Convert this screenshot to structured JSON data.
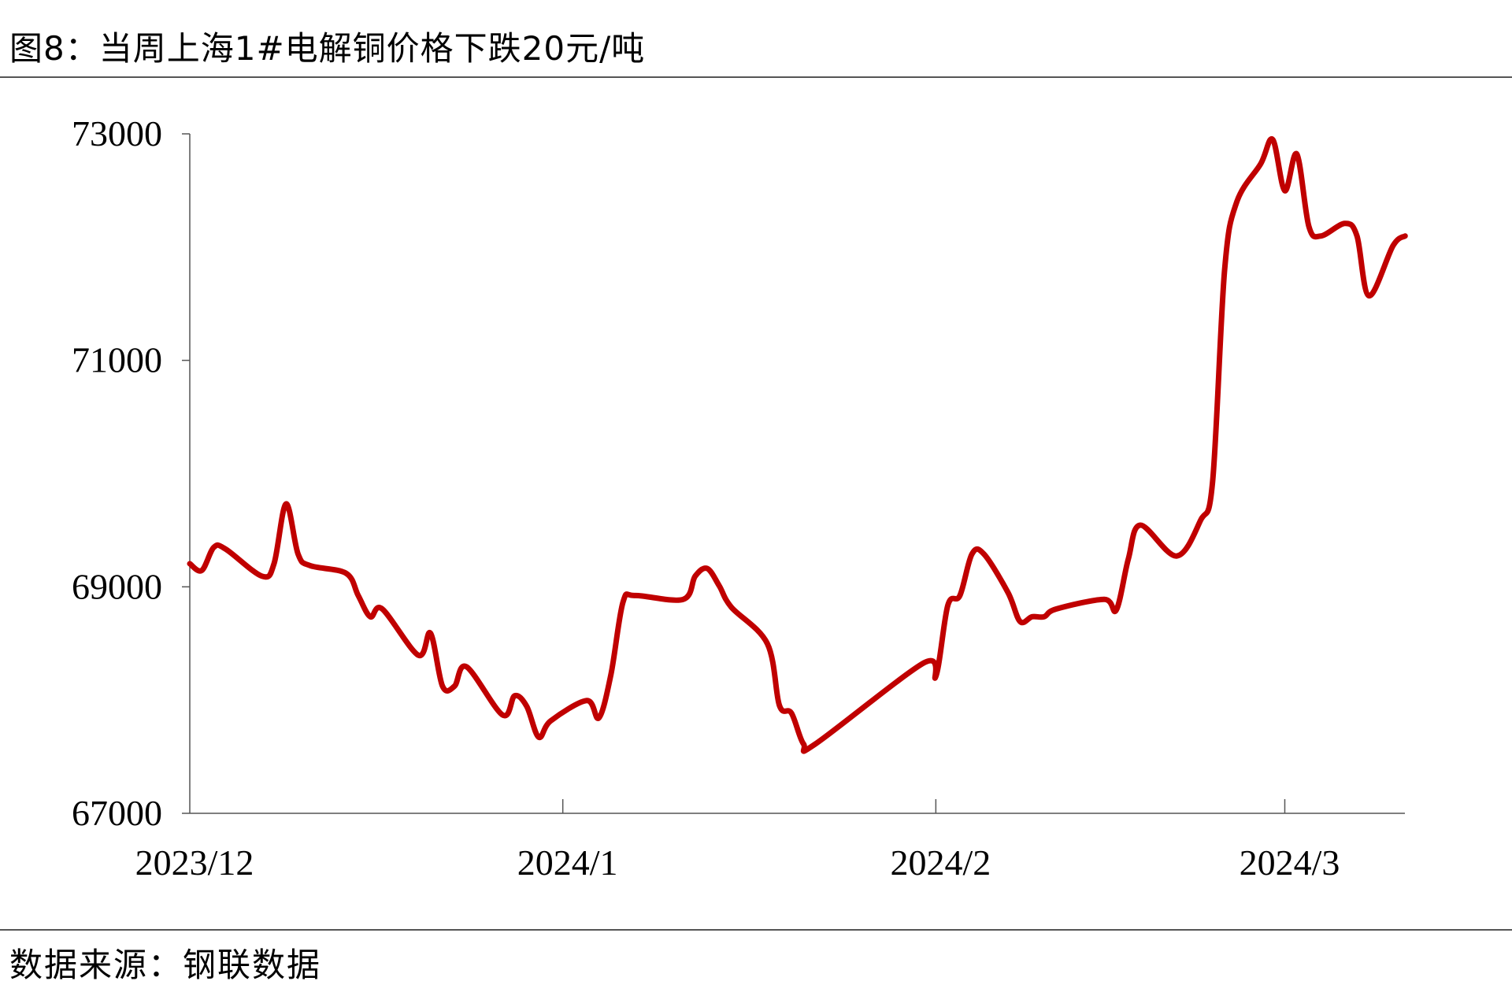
{
  "title": "图8：当周上海1#电解铜价格下跌20元/吨",
  "source": "数据来源：钢联数据",
  "chart_data": {
    "type": "line",
    "title": "图8：当周上海1#电解铜价格下跌20元/吨",
    "xlabel": "",
    "ylabel": "",
    "ylim": [
      67000,
      73000
    ],
    "yticks": [
      "73000",
      "71000",
      "69000",
      "67000"
    ],
    "xticks": [
      {
        "label": "2023/12",
        "date": "2023-12-01"
      },
      {
        "label": "2024/1",
        "date": "2024-01-01"
      },
      {
        "label": "2024/2",
        "date": "2024-02-01"
      },
      {
        "label": "2024/3",
        "date": "2024-03-01"
      }
    ],
    "xlim": [
      "2023-12-01",
      "2024-03-13"
    ],
    "grid": false,
    "line_color": "#C00000",
    "series": [
      {
        "points": [
          [
            "2023-12-01",
            69204
          ],
          [
            "2023-12-02",
            69145
          ],
          [
            "2023-12-03",
            69349
          ],
          [
            "2023-12-04",
            69332
          ],
          [
            "2023-12-07",
            69094
          ],
          [
            "2023-12-08",
            69204
          ],
          [
            "2023-12-09",
            69732
          ],
          [
            "2023-12-10",
            69289
          ],
          [
            "2023-12-11",
            69187
          ],
          [
            "2023-12-14",
            69119
          ],
          [
            "2023-12-15",
            68923
          ],
          [
            "2023-12-16",
            68736
          ],
          [
            "2023-12-17",
            68804
          ],
          [
            "2023-12-20",
            68396
          ],
          [
            "2023-12-21",
            68591
          ],
          [
            "2023-12-22",
            68123
          ],
          [
            "2023-12-23",
            68123
          ],
          [
            "2023-12-24",
            68294
          ],
          [
            "2023-12-27",
            67868
          ],
          [
            "2023-12-28",
            68038
          ],
          [
            "2023-12-29",
            67945
          ],
          [
            "2023-12-30",
            67672
          ],
          [
            "2023-12-31",
            67817
          ],
          [
            "2024-01-03",
            67996
          ],
          [
            "2024-01-04",
            67843
          ],
          [
            "2024-01-05",
            68226
          ],
          [
            "2024-01-06",
            68864
          ],
          [
            "2024-01-07",
            68923
          ],
          [
            "2024-01-11",
            68889
          ],
          [
            "2024-01-12",
            69094
          ],
          [
            "2024-01-13",
            69162
          ],
          [
            "2024-01-14",
            69009
          ],
          [
            "2024-01-15",
            68821
          ],
          [
            "2024-01-18",
            68498
          ],
          [
            "2024-01-19",
            67953
          ],
          [
            "2024-01-20",
            67885
          ],
          [
            "2024-01-21",
            67613
          ],
          [
            "2024-01-22",
            67613
          ],
          [
            "2024-01-31",
            68328
          ],
          [
            "2024-02-01",
            68209
          ],
          [
            "2024-02-02",
            68838
          ],
          [
            "2024-02-03",
            68923
          ],
          [
            "2024-02-04",
            69289
          ],
          [
            "2024-02-05",
            69289
          ],
          [
            "2024-02-07",
            68949
          ],
          [
            "2024-02-08",
            68694
          ],
          [
            "2024-02-09",
            68736
          ],
          [
            "2024-02-10",
            68736
          ],
          [
            "2024-02-11",
            68804
          ],
          [
            "2024-02-15",
            68889
          ],
          [
            "2024-02-16",
            68796
          ],
          [
            "2024-02-17",
            69247
          ],
          [
            "2024-02-18",
            69545
          ],
          [
            "2024-02-21",
            69272
          ],
          [
            "2024-02-23",
            69587
          ],
          [
            "2024-02-24",
            69928
          ],
          [
            "2024-02-25",
            71800
          ],
          [
            "2024-02-26",
            72396
          ],
          [
            "2024-02-28",
            72736
          ],
          [
            "2024-02-29",
            72949
          ],
          [
            "2024-03-01",
            72498
          ],
          [
            "2024-03-02",
            72821
          ],
          [
            "2024-03-03",
            72183
          ],
          [
            "2024-03-04",
            72098
          ],
          [
            "2024-03-06",
            72209
          ],
          [
            "2024-03-07",
            72098
          ],
          [
            "2024-03-08",
            71570
          ],
          [
            "2024-03-10",
            72013
          ],
          [
            "2024-03-11",
            72098
          ]
        ]
      }
    ]
  }
}
